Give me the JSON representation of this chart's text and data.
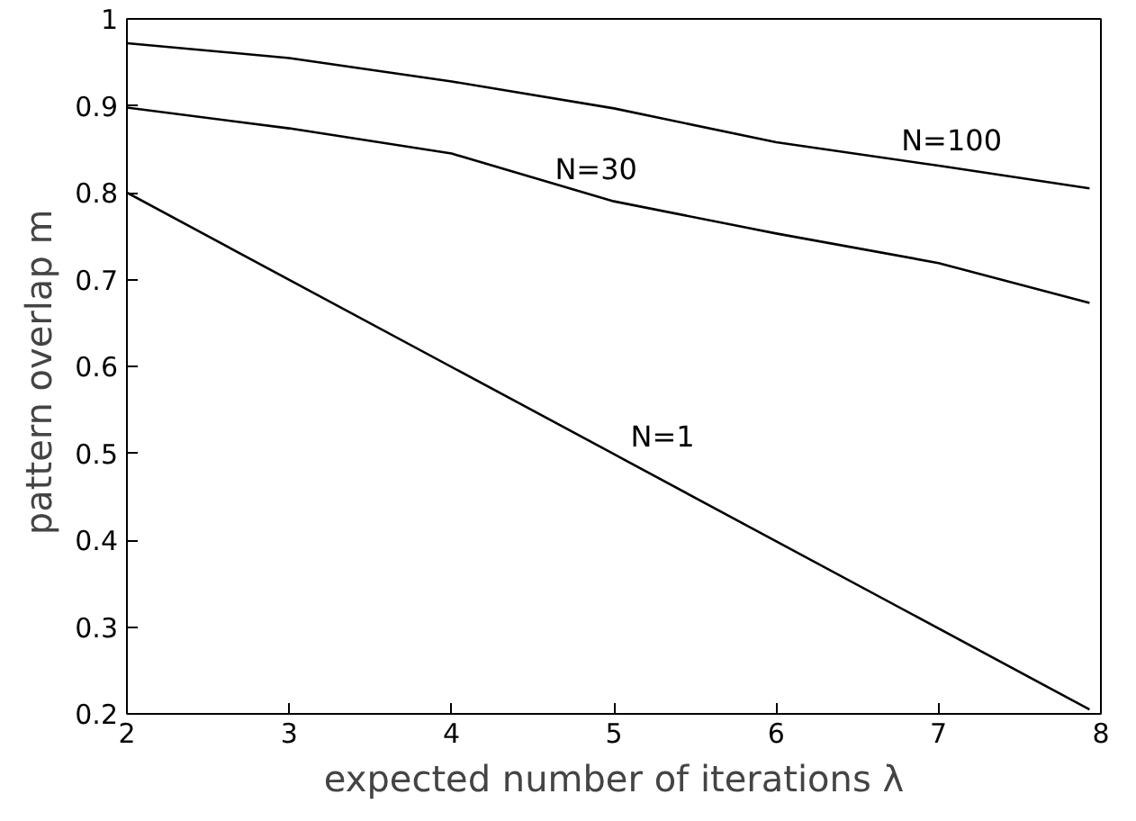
{
  "chart_data": {
    "type": "line",
    "xlabel": "expected number of iterations λ",
    "ylabel": "pattern overlap  m",
    "xlim": [
      2,
      8
    ],
    "ylim": [
      0.2,
      1
    ],
    "xticks": [
      2,
      3,
      4,
      5,
      6,
      7,
      8
    ],
    "yticks": [
      0.2,
      0.3,
      0.4,
      0.5,
      0.6,
      0.7,
      0.8,
      0.9,
      1
    ],
    "grid": false,
    "marker": "none",
    "line_style": "solid",
    "series": [
      {
        "name": "N=100",
        "color": "#000000",
        "x": [
          2,
          3,
          4,
          5,
          6,
          7,
          7.93
        ],
        "values": [
          0.972,
          0.955,
          0.928,
          0.897,
          0.858,
          0.831,
          0.805
        ]
      },
      {
        "name": "N=30",
        "color": "#000000",
        "x": [
          2,
          3,
          4,
          5,
          6,
          7,
          7.93
        ],
        "values": [
          0.898,
          0.874,
          0.845,
          0.79,
          0.753,
          0.719,
          0.673
        ]
      },
      {
        "name": "N=1",
        "color": "#000000",
        "x": [
          2,
          5,
          7.93
        ],
        "values": [
          0.8,
          0.499,
          0.205
        ]
      }
    ]
  }
}
